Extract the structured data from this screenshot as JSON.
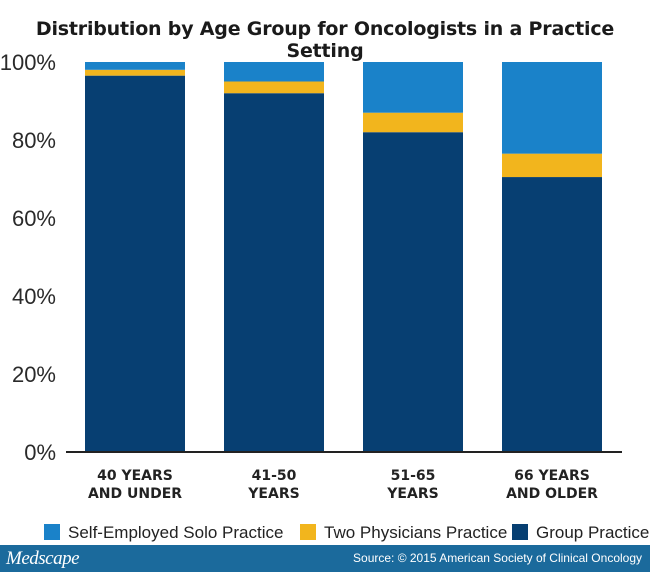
{
  "title": "Distribution by Age Group for Oncologists in a Practice Setting",
  "chart_data": {
    "type": "bar",
    "stacked": true,
    "percent": true,
    "categories": [
      [
        "40 YEARS",
        "AND UNDER"
      ],
      [
        "41-50",
        "YEARS"
      ],
      [
        "51-65",
        "YEARS"
      ],
      [
        "66 YEARS",
        "AND OLDER"
      ]
    ],
    "series": [
      {
        "name": "Group Practice",
        "color": "#073f72",
        "values": [
          96.5,
          92,
          82,
          70.5
        ]
      },
      {
        "name": "Two Physicians Practice",
        "color": "#f2b51d",
        "values": [
          1.5,
          3,
          5,
          6
        ]
      },
      {
        "name": "Self-Employed Solo Practice",
        "color": "#1a82c9",
        "values": [
          2,
          5,
          13,
          23.5
        ]
      }
    ],
    "legend_order": [
      "Self-Employed Solo Practice",
      "Two Physicians Practice",
      "Group Practice"
    ],
    "legend_position": "bottom",
    "ylim": [
      0,
      100
    ],
    "yticks": [
      "0%",
      "20%",
      "40%",
      "60%",
      "80%",
      "100%"
    ],
    "ytick_values": [
      0,
      20,
      40,
      60,
      80,
      100
    ],
    "grid": false
  },
  "footer": {
    "brand": "Medscape",
    "source": "Source: © 2015 American Society of Clinical Oncology"
  }
}
